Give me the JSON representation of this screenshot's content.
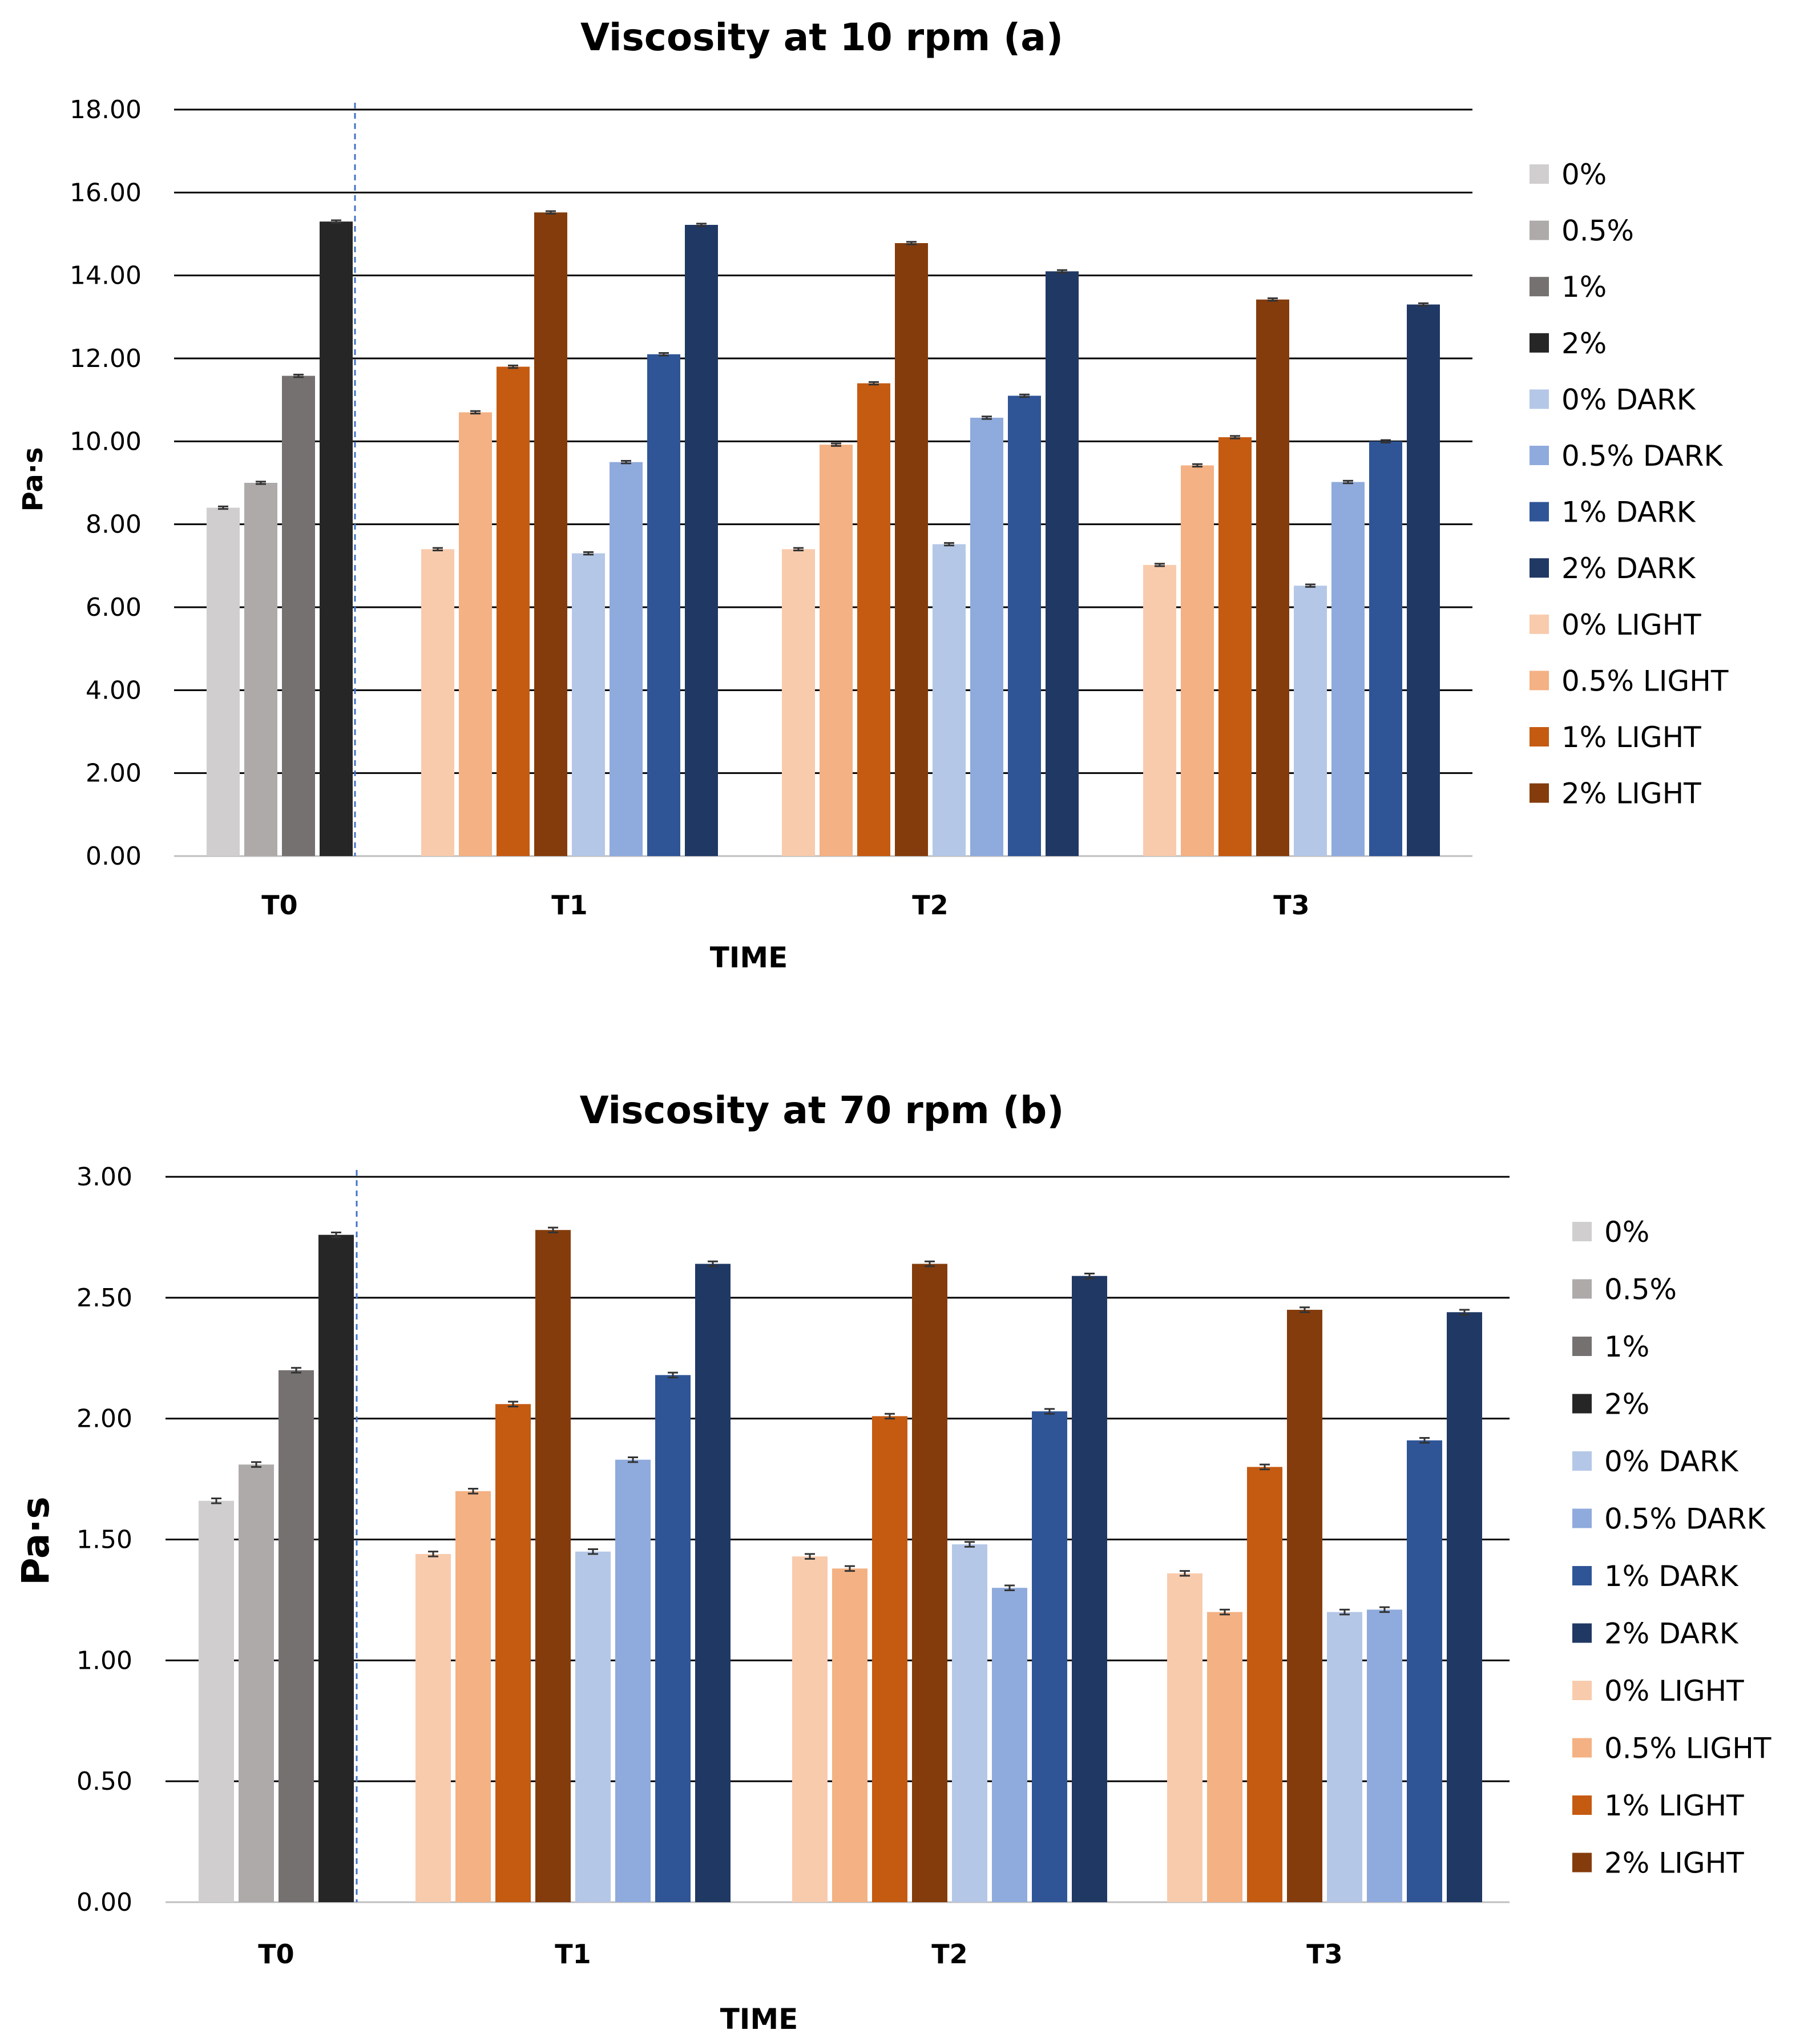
{
  "chart_data": [
    {
      "type": "bar",
      "title": "Viscosity at 10 rpm (a)",
      "xlabel": "TIME",
      "ylabel": "Pa·s",
      "ylim": [
        0,
        18
      ],
      "ytick_step": 2,
      "ytick_labels": [
        "0.00",
        "2.00",
        "4.00",
        "6.00",
        "8.00",
        "10.00",
        "12.00",
        "14.00",
        "16.00",
        "18.00"
      ],
      "grid": true,
      "legend_position": "right",
      "categories": [
        "T0",
        "T1",
        "T2",
        "T3"
      ],
      "series": [
        {
          "name": "0%",
          "color": "#d0cece",
          "values": [
            8.4,
            null,
            null,
            null
          ]
        },
        {
          "name": "0.5%",
          "color": "#aeaaaa",
          "values": [
            9.0,
            null,
            null,
            null
          ]
        },
        {
          "name": "1%",
          "color": "#767171",
          "values": [
            11.58,
            null,
            null,
            null
          ]
        },
        {
          "name": "2%",
          "color": "#262626",
          "values": [
            15.3,
            null,
            null,
            null
          ]
        },
        {
          "name": "0% DARK",
          "color": "#b4c7e7",
          "values": [
            null,
            7.3,
            7.52,
            6.52
          ]
        },
        {
          "name": "0.5% DARK",
          "color": "#8faadc",
          "values": [
            null,
            9.5,
            10.57,
            9.02
          ]
        },
        {
          "name": "1% DARK",
          "color": "#2f5597",
          "values": [
            null,
            12.1,
            11.1,
            10.0
          ]
        },
        {
          "name": "2% DARK",
          "color": "#203864",
          "values": [
            null,
            15.22,
            14.1,
            13.3
          ]
        },
        {
          "name": "0% LIGHT",
          "color": "#f8cbad",
          "values": [
            null,
            7.4,
            7.4,
            7.02
          ]
        },
        {
          "name": "0.5% LIGHT",
          "color": "#f4b183",
          "values": [
            null,
            10.7,
            9.92,
            9.42
          ]
        },
        {
          "name": "1% LIGHT",
          "color": "#c55a11",
          "values": [
            null,
            11.8,
            11.4,
            10.1
          ]
        },
        {
          "name": "2% LIGHT",
          "color": "#843c0c",
          "values": [
            null,
            15.52,
            14.78,
            13.42
          ]
        }
      ],
      "bar_order": {
        "T0": [
          "0%",
          "0.5%",
          "1%",
          "2%"
        ],
        "T1": [
          "0% LIGHT",
          "0.5% LIGHT",
          "1% LIGHT",
          "2% LIGHT",
          "0% DARK",
          "0.5% DARK",
          "1% DARK",
          "2% DARK"
        ],
        "T2": [
          "0% LIGHT",
          "0.5% LIGHT",
          "1% LIGHT",
          "2% LIGHT",
          "0% DARK",
          "0.5% DARK",
          "1% DARK",
          "2% DARK"
        ],
        "T3": [
          "0% LIGHT",
          "0.5% LIGHT",
          "1% LIGHT",
          "2% LIGHT",
          "0% DARK",
          "0.5% DARK",
          "1% DARK",
          "2% DARK"
        ]
      },
      "error_bars": 0.03
    },
    {
      "type": "bar",
      "title": "Viscosity at 70 rpm (b)",
      "xlabel": "TIME",
      "ylabel": "Pa·s",
      "ylim": [
        0,
        3
      ],
      "ytick_step": 0.5,
      "ytick_labels": [
        "0.00",
        "0.50",
        "1.00",
        "1.50",
        "2.00",
        "2.50",
        "3.00"
      ],
      "grid": true,
      "legend_position": "right",
      "categories": [
        "T0",
        "T1",
        "T2",
        "T3"
      ],
      "series": [
        {
          "name": "0%",
          "color": "#d0cece",
          "values": [
            1.66,
            null,
            null,
            null
          ]
        },
        {
          "name": "0.5%",
          "color": "#aeaaaa",
          "values": [
            1.81,
            null,
            null,
            null
          ]
        },
        {
          "name": "1%",
          "color": "#767171",
          "values": [
            2.2,
            null,
            null,
            null
          ]
        },
        {
          "name": "2%",
          "color": "#262626",
          "values": [
            2.76,
            null,
            null,
            null
          ]
        },
        {
          "name": "0% DARK",
          "color": "#b4c7e7",
          "values": [
            null,
            1.45,
            1.48,
            1.2
          ]
        },
        {
          "name": "0.5% DARK",
          "color": "#8faadc",
          "values": [
            null,
            1.83,
            1.3,
            1.21
          ]
        },
        {
          "name": "1% DARK",
          "color": "#2f5597",
          "values": [
            null,
            2.18,
            2.03,
            1.91
          ]
        },
        {
          "name": "2% DARK",
          "color": "#203864",
          "values": [
            null,
            2.64,
            2.59,
            2.44
          ]
        },
        {
          "name": "0% LIGHT",
          "color": "#f8cbad",
          "values": [
            null,
            1.44,
            1.43,
            1.36
          ]
        },
        {
          "name": "0.5% LIGHT",
          "color": "#f4b183",
          "values": [
            null,
            1.7,
            1.38,
            1.2
          ]
        },
        {
          "name": "1% LIGHT",
          "color": "#c55a11",
          "values": [
            null,
            2.06,
            2.01,
            1.8
          ]
        },
        {
          "name": "2% LIGHT",
          "color": "#843c0c",
          "values": [
            null,
            2.78,
            2.64,
            2.45
          ]
        }
      ],
      "bar_order": {
        "T0": [
          "0%",
          "0.5%",
          "1%",
          "2%"
        ],
        "T1": [
          "0% LIGHT",
          "0.5% LIGHT",
          "1% LIGHT",
          "2% LIGHT",
          "0% DARK",
          "0.5% DARK",
          "1% DARK",
          "2% DARK"
        ],
        "T2": [
          "0% LIGHT",
          "0.5% LIGHT",
          "1% LIGHT",
          "2% LIGHT",
          "0% DARK",
          "0.5% DARK",
          "1% DARK",
          "2% DARK"
        ],
        "T3": [
          "0% LIGHT",
          "0.5% LIGHT",
          "1% LIGHT",
          "2% LIGHT",
          "0% DARK",
          "0.5% DARK",
          "1% DARK",
          "2% DARK"
        ]
      },
      "error_bars": 0.01
    }
  ]
}
